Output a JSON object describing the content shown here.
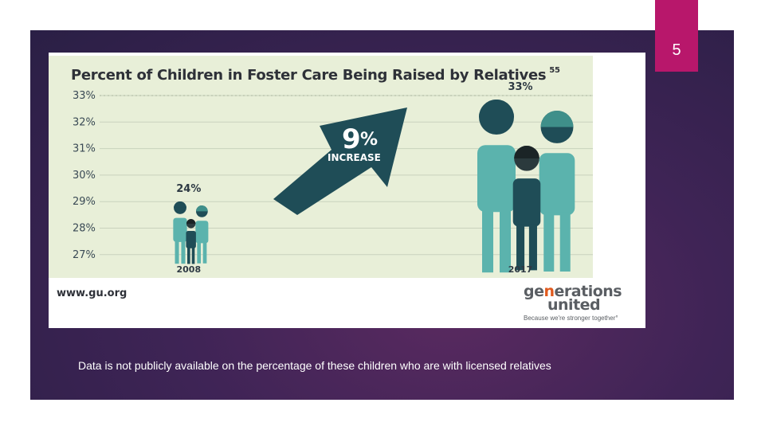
{
  "slide": {
    "page_number": "5",
    "caption": "Data is not publicly available on the percentage of these children who are with licensed relatives",
    "website": "www.gu.org",
    "logo": {
      "line1_a": "ge",
      "line1_b": "n",
      "line1_c": "erations",
      "line2": "united",
      "tagline": "Because we're stronger together°"
    },
    "arrow": {
      "big": "9",
      "pct": "%",
      "word": "INCREASE"
    },
    "colors": {
      "tab": "#b8176b",
      "teal_dark": "#1f4d57",
      "teal": "#5bb3ad",
      "bg_chart": "#e8efd8"
    }
  },
  "chart_data": {
    "type": "bar",
    "title": "Percent of Children in Foster Care Being Raised by Relatives",
    "title_footnote": "55",
    "categories": [
      "2008",
      "2017"
    ],
    "values": [
      24,
      33
    ],
    "value_labels": [
      "24%",
      "33%"
    ],
    "y_ticks": [
      "33%",
      "32%",
      "31%",
      "30%",
      "29%",
      "28%",
      "27%"
    ],
    "ylim": [
      27,
      33
    ],
    "xlabel": "",
    "ylabel": "",
    "grid": true,
    "annotation": "9% INCREASE"
  }
}
